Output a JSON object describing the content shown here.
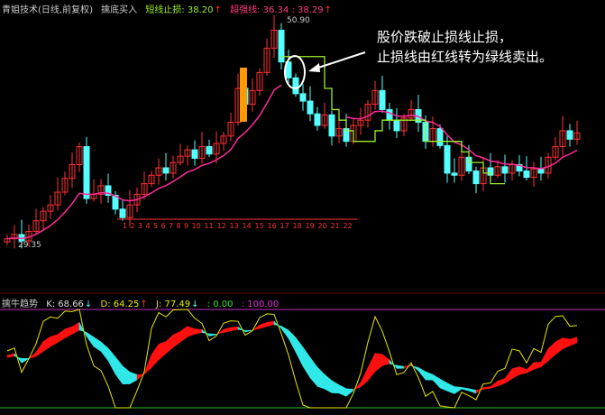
{
  "header": {
    "title": "青姐技术(日线,前复权)",
    "indicator": "擒底买入",
    "stop_label": "短线止损: 38.20",
    "stop_arrow": "↑",
    "line2_label": "超强线: 36.34 : 38.29",
    "line2_arrow": "↑"
  },
  "sub_header": {
    "title": "擒牛趋势",
    "k": "K: 68.66",
    "k_arrow": "↓",
    "d": "D: 64.25",
    "d_arrow": "↑",
    "j": "J: 77.49",
    "j_arrow": "↓",
    "a": ": 0.00",
    "b": ": 100.00"
  },
  "annotation": {
    "line1": "股价跌破止损线止损，",
    "line2": "止损线由红线转为绿线卖出。"
  },
  "colors": {
    "up": "#ff3232",
    "down": "#54ffff",
    "ma": "#ff2a9a",
    "stop": "#9bef2d",
    "kdj_j": "#e8e800",
    "ribbon_up": "#ff1010",
    "ribbon_down": "#30e8e8",
    "highlight": "#ff9900"
  },
  "chart_data": {
    "type": "candlestick",
    "high_label": "50.90",
    "low_label": "29.35",
    "count_labels": [
      "1",
      "2",
      "3",
      "4",
      "5",
      "6",
      "7",
      "8",
      "9",
      "10",
      "11",
      "12",
      "13",
      "14",
      "15",
      "16",
      "17",
      "18",
      "19",
      "20",
      "21",
      "22"
    ],
    "closes": [
      29.8,
      30.2,
      29.6,
      30.5,
      31.5,
      32.4,
      33.0,
      34.2,
      35.5,
      36.8,
      38.5,
      33.6,
      34.0,
      34.8,
      33.9,
      32.6,
      31.8,
      33,
      34,
      35,
      35.8,
      36.5,
      36.0,
      37.0,
      37.6,
      38.2,
      37.4,
      38.5,
      37.8,
      38.8,
      39.5,
      40.8,
      44,
      42.5,
      43.8,
      45.5,
      47.8,
      49.5,
      46.5,
      45.0,
      43.5,
      42.8,
      41.6,
      40.5,
      41.5,
      39.5,
      40.2,
      39.0,
      40.5,
      41.0,
      42.5,
      43.8,
      42.0,
      41.0,
      40.0,
      41.2,
      42.0,
      40.8,
      39.0,
      40.2,
      38.6,
      36.0,
      35.8,
      37.5,
      36.2,
      35.0,
      36.5,
      35.8,
      36.6,
      36.0,
      36.8,
      36.2,
      35.6,
      36.4,
      36.0,
      37.5,
      38.5,
      40.0,
      39.2,
      39.8
    ],
    "kdj_range": [
      0,
      100
    ]
  }
}
